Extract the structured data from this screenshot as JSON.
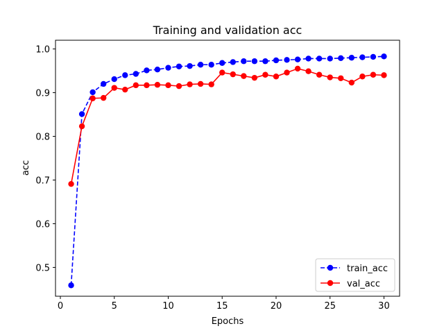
{
  "chart_data": {
    "type": "line",
    "title": "Training and validation acc",
    "xlabel": "Epochs",
    "ylabel": "acc",
    "xlim": [
      -0.45,
      31.45
    ],
    "ylim": [
      0.434,
      1.02
    ],
    "xticks": [
      0,
      5,
      10,
      15,
      20,
      25,
      30
    ],
    "yticks": [
      0.5,
      0.6,
      0.7,
      0.8,
      0.9,
      1.0
    ],
    "ytick_labels": [
      "0.5",
      "0.6",
      "0.7",
      "0.8",
      "0.9",
      "1.0"
    ],
    "legend_position": "lower-right",
    "x": [
      1,
      2,
      3,
      4,
      5,
      6,
      7,
      8,
      9,
      10,
      11,
      12,
      13,
      14,
      15,
      16,
      17,
      18,
      19,
      20,
      21,
      22,
      23,
      24,
      25,
      26,
      27,
      28,
      29,
      30
    ],
    "series": [
      {
        "name": "train_acc",
        "color": "#0000ff",
        "style": "dashed",
        "marker": "circle",
        "values": [
          0.459,
          0.851,
          0.901,
          0.92,
          0.931,
          0.94,
          0.943,
          0.951,
          0.953,
          0.957,
          0.96,
          0.961,
          0.964,
          0.964,
          0.968,
          0.97,
          0.972,
          0.972,
          0.972,
          0.974,
          0.975,
          0.976,
          0.978,
          0.978,
          0.978,
          0.979,
          0.98,
          0.981,
          0.982,
          0.983
        ]
      },
      {
        "name": "val_acc",
        "color": "#ff0000",
        "style": "solid",
        "marker": "circle",
        "values": [
          0.691,
          0.823,
          0.887,
          0.888,
          0.911,
          0.907,
          0.917,
          0.917,
          0.918,
          0.917,
          0.915,
          0.919,
          0.92,
          0.919,
          0.946,
          0.942,
          0.938,
          0.934,
          0.941,
          0.937,
          0.946,
          0.955,
          0.949,
          0.941,
          0.935,
          0.933,
          0.923,
          0.937,
          0.941,
          0.94
        ]
      }
    ]
  }
}
